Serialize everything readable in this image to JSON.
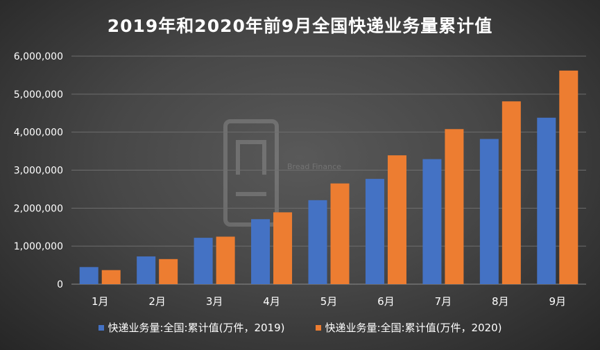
{
  "chart_data": {
    "type": "bar",
    "title": "2019年和2020年前9月全国快递业务量累计值",
    "categories": [
      "1月",
      "2月",
      "3月",
      "4月",
      "5月",
      "6月",
      "7月",
      "8月",
      "9月"
    ],
    "series": [
      {
        "name": "快递业务量:全国:累计值(万件，2019)",
        "color": "#4472C4",
        "values": [
          450000,
          730000,
          1220000,
          1710000,
          2210000,
          2770000,
          3290000,
          3820000,
          4380000
        ]
      },
      {
        "name": "快递业务量:全国:累计值(万件，2020)",
        "color": "#ED7D31",
        "values": [
          370000,
          660000,
          1250000,
          1890000,
          2650000,
          3390000,
          4080000,
          4810000,
          5620000
        ]
      }
    ],
    "yticks": [
      "0",
      "1,000,000",
      "2,000,000",
      "3,000,000",
      "4,000,000",
      "5,000,000",
      "6,000,000"
    ],
    "ylim": [
      0,
      6000000
    ],
    "grid": true,
    "legend_position": "bottom"
  },
  "watermark": {
    "text": "Bread Finance",
    "icon": "bread-finance-logo"
  }
}
